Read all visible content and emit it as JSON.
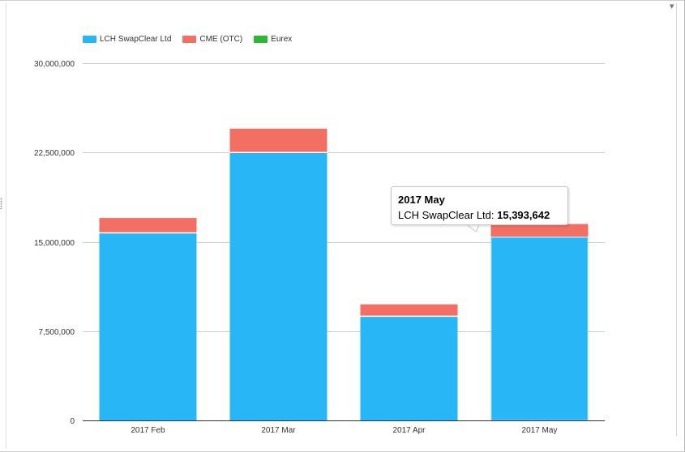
{
  "chart_data": {
    "type": "bar",
    "stacked": true,
    "categories": [
      "2017 Feb",
      "2017 Mar",
      "2017 Apr",
      "2017 May"
    ],
    "series": [
      {
        "name": "LCH SwapClear Ltd",
        "color": "#29b6f6",
        "values": [
          15750000,
          22500000,
          8750000,
          15393642
        ]
      },
      {
        "name": "CME (OTC)",
        "color": "#f36f63",
        "values": [
          1250000,
          2000000,
          1000000,
          1100000
        ]
      },
      {
        "name": "Eurex",
        "color": "#2db833",
        "values": [
          0,
          0,
          0,
          0
        ]
      }
    ],
    "ylim": [
      0,
      30000000
    ],
    "yticks": [
      0,
      7500000,
      15000000,
      22500000,
      30000000
    ],
    "ytick_labels": [
      "0",
      "7,500,000",
      "15,000,000",
      "22,500,000",
      "30,000,000"
    ],
    "grid": true,
    "legend_position": "top-left",
    "title": "",
    "xlabel": "",
    "ylabel": ""
  },
  "tooltip": {
    "title": "2017 May",
    "series_label": "LCH SwapClear Ltd:",
    "value": "15,393,642"
  },
  "chrome": {
    "corner_icon": "dropdown-caret-icon"
  }
}
